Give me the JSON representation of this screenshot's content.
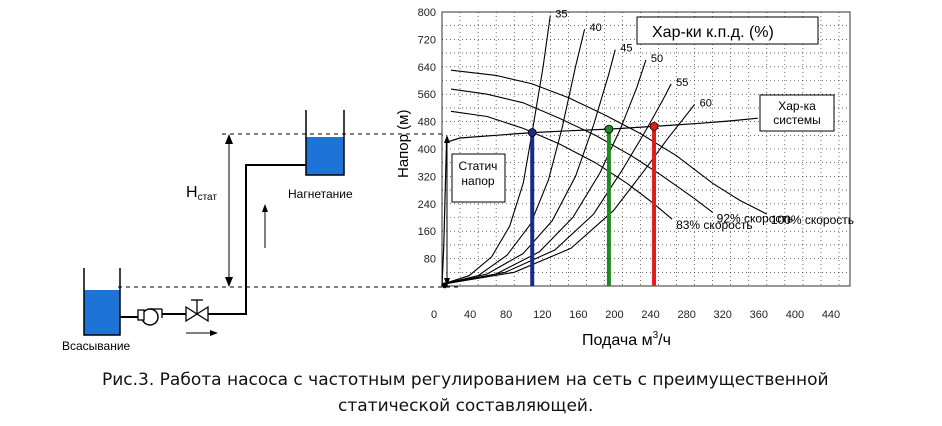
{
  "schematic": {
    "h_static_label": "H",
    "h_static_sub": "стат",
    "discharge_label": "Нагнетание",
    "suction_label": "Всасывание",
    "tank_color": "#1e74d6"
  },
  "chart_data": {
    "type": "line",
    "xlabel": "Подача м",
    "xlabel_sup": "3",
    "xlabel_tail": "/ч",
    "ylabel": "Напор (м)",
    "xlim": [
      0,
      440
    ],
    "ylim": [
      0,
      800
    ],
    "x_ticks": [
      0,
      40,
      80,
      120,
      160,
      200,
      240,
      280,
      320,
      360,
      400,
      440
    ],
    "y_ticks": [
      80,
      160,
      240,
      320,
      400,
      480,
      560,
      640,
      720,
      800
    ],
    "grid": true,
    "efficiency_title": "Хар-ки к.п.д. (%)",
    "efficiency_curves": [
      {
        "label": "35",
        "points": [
          [
            0,
            5
          ],
          [
            30,
            30
          ],
          [
            55,
            85
          ],
          [
            75,
            175
          ],
          [
            90,
            300
          ],
          [
            100,
            450
          ],
          [
            112,
            640
          ],
          [
            120,
            790
          ]
        ]
      },
      {
        "label": "40",
        "points": [
          [
            0,
            5
          ],
          [
            40,
            30
          ],
          [
            72,
            90
          ],
          [
            98,
            180
          ],
          [
            118,
            310
          ],
          [
            133,
            460
          ],
          [
            148,
            640
          ],
          [
            158,
            750
          ]
        ]
      },
      {
        "label": "45",
        "points": [
          [
            0,
            5
          ],
          [
            50,
            35
          ],
          [
            90,
            95
          ],
          [
            122,
            190
          ],
          [
            148,
            320
          ],
          [
            168,
            470
          ],
          [
            185,
            620
          ],
          [
            192,
            690
          ]
        ]
      },
      {
        "label": "50",
        "points": [
          [
            0,
            5
          ],
          [
            60,
            35
          ],
          [
            108,
            100
          ],
          [
            145,
            200
          ],
          [
            175,
            330
          ],
          [
            198,
            460
          ],
          [
            216,
            580
          ],
          [
            226,
            660
          ]
        ]
      },
      {
        "label": "55",
        "points": [
          [
            0,
            5
          ],
          [
            70,
            40
          ],
          [
            125,
            105
          ],
          [
            168,
            210
          ],
          [
            200,
            340
          ],
          [
            225,
            450
          ],
          [
            244,
            540
          ],
          [
            254,
            590
          ]
        ]
      },
      {
        "label": "60",
        "points": [
          [
            0,
            5
          ],
          [
            80,
            40
          ],
          [
            143,
            110
          ],
          [
            190,
            220
          ],
          [
            225,
            340
          ],
          [
            250,
            430
          ],
          [
            268,
            490
          ],
          [
            280,
            530
          ]
        ]
      }
    ],
    "speed_curves": [
      {
        "label": "100% скорость",
        "points": [
          [
            10,
            630
          ],
          [
            60,
            615
          ],
          [
            100,
            590
          ],
          [
            140,
            550
          ],
          [
            180,
            500
          ],
          [
            220,
            445
          ],
          [
            260,
            380
          ],
          [
            300,
            300
          ],
          [
            330,
            250
          ],
          [
            360,
            210
          ]
        ]
      },
      {
        "label": "92% скорость",
        "points": [
          [
            10,
            575
          ],
          [
            50,
            560
          ],
          [
            90,
            535
          ],
          [
            130,
            490
          ],
          [
            170,
            440
          ],
          [
            210,
            380
          ],
          [
            245,
            320
          ],
          [
            280,
            255
          ],
          [
            300,
            215
          ]
        ]
      },
      {
        "label": "83% скорость",
        "points": [
          [
            10,
            510
          ],
          [
            50,
            495
          ],
          [
            90,
            460
          ],
          [
            130,
            415
          ],
          [
            170,
            360
          ],
          [
            205,
            300
          ],
          [
            235,
            240
          ],
          [
            255,
            195
          ]
        ]
      }
    ],
    "system_curve": {
      "label": "Хар-ка системы",
      "points": [
        [
          0,
          0
        ],
        [
          2,
          120
        ],
        [
          5,
          420
        ],
        [
          20,
          432
        ],
        [
          60,
          440
        ],
        [
          100,
          448
        ],
        [
          140,
          453
        ],
        [
          185,
          458
        ],
        [
          235,
          466
        ],
        [
          280,
          474
        ],
        [
          320,
          482
        ],
        [
          350,
          490
        ]
      ]
    },
    "static_head": {
      "label": "Статич напор",
      "value": 450
    },
    "operating_points": [
      {
        "x": 100,
        "y": 448,
        "color": "#1a2a8a"
      },
      {
        "x": 185,
        "y": 458,
        "color": "#1f8a1f"
      },
      {
        "x": 235,
        "y": 466,
        "color": "#e01c1c"
      }
    ]
  },
  "caption": {
    "line1": "Рис.3. Работа насоса с частотным регулированием на сеть с преимущественной",
    "line2": "статической составляющей."
  }
}
